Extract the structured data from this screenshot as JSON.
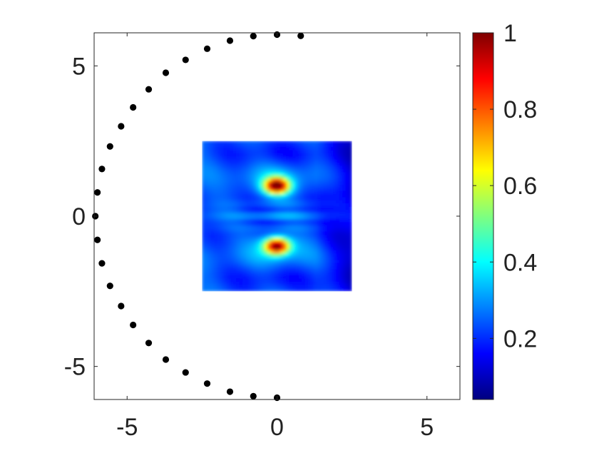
{
  "chart_data": {
    "type": "heatmap",
    "title": "",
    "xlabel": "",
    "ylabel": "",
    "xlim": [
      -6.1,
      6.1
    ],
    "ylim": [
      -6.1,
      6.1
    ],
    "x_ticks": [
      "-5",
      "0",
      "5"
    ],
    "y_ticks": [
      "5",
      "0",
      "-5"
    ],
    "grid": false,
    "colormap": "jet",
    "colorbar": {
      "range": [
        0.04,
        1.0
      ],
      "ticks": [
        "1",
        "0.8",
        "0.6",
        "0.4",
        "0.2"
      ]
    },
    "heatmap_extent": {
      "x": [
        -2.5,
        2.5
      ],
      "y": [
        -2.5,
        2.5
      ]
    },
    "heatmap_peaks": [
      {
        "x": 0.0,
        "y": 1.0,
        "value": 0.95
      },
      {
        "x": 0.0,
        "y": -1.0,
        "value": 0.95
      }
    ],
    "points_series": {
      "marker_color": "#000000",
      "points": [
        [
          0.79,
          6.0
        ],
        [
          0.0,
          6.04
        ],
        [
          -0.79,
          5.99
        ],
        [
          -1.57,
          5.84
        ],
        [
          -2.33,
          5.57
        ],
        [
          -3.05,
          5.2
        ],
        [
          -3.71,
          4.77
        ],
        [
          -4.28,
          4.22
        ],
        [
          -4.8,
          3.62
        ],
        [
          -5.2,
          2.99
        ],
        [
          -5.57,
          2.32
        ],
        [
          -5.84,
          1.57
        ],
        [
          -5.99,
          0.79
        ],
        [
          -6.06,
          0.0
        ],
        [
          -5.99,
          -0.79
        ],
        [
          -5.84,
          -1.57
        ],
        [
          -5.57,
          -2.32
        ],
        [
          -5.2,
          -2.99
        ],
        [
          -4.8,
          -3.62
        ],
        [
          -4.28,
          -4.22
        ],
        [
          -3.71,
          -4.77
        ],
        [
          -3.05,
          -5.2
        ],
        [
          -2.33,
          -5.57
        ],
        [
          -1.57,
          -5.84
        ],
        [
          -0.79,
          -5.99
        ],
        [
          0.0,
          -6.04
        ]
      ]
    }
  }
}
